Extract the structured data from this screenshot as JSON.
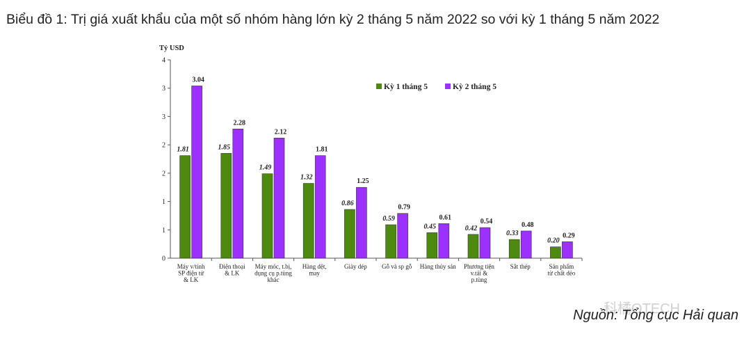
{
  "title": "Biểu đồ 1: Trị giá xuất khẩu của một số nhóm hàng lớn kỳ 2 tháng 5 năm 2022 so với kỳ 1 tháng 5 năm 2022",
  "source": "Nguồn: Tổng cục Hải quan",
  "watermark": "科橘OTECH",
  "chart_data": {
    "type": "bar",
    "title": "",
    "ylabel": "Tỷ USD",
    "ylim": [
      0,
      3.5
    ],
    "yticks": [
      0,
      0.5,
      1,
      1.5,
      2,
      2.5,
      3,
      3.5
    ],
    "ytick_labels": [
      "0",
      "1",
      "1",
      "2",
      "2",
      "3",
      "3",
      "4"
    ],
    "grid": false,
    "legend_position": "top-right",
    "categories": [
      "Máy v/tính SP điện tử & LK",
      "Điện thoại & LK",
      "Máy móc, t.bị, dụng cụ p.tùng khác",
      "Hàng dệt, may",
      "Giày dép",
      "Gỗ và sp gỗ",
      "Hàng thủy sản",
      "Phương tiện v.tải & p.tùng",
      "Sắt thép",
      "Sản phẩm từ chất dẻo"
    ],
    "category_lines": [
      [
        "Máy v/tính",
        "SP điện tử",
        "& LK"
      ],
      [
        "Điện thoại",
        "& LK"
      ],
      [
        "Máy móc, t.bị,",
        "dụng cụ p.tùng",
        "khác"
      ],
      [
        "Hàng dệt,",
        "may"
      ],
      [
        "Giày dép"
      ],
      [
        "Gỗ và sp gỗ"
      ],
      [
        "Hàng thủy sản"
      ],
      [
        "Phương tiện",
        "v.tải &",
        "p.tùng"
      ],
      [
        "Sắt thép"
      ],
      [
        "Sản phẩm",
        "từ chất dẻo"
      ]
    ],
    "series": [
      {
        "name": "Kỳ 1 tháng 5",
        "color": "#4f8a10",
        "values": [
          1.81,
          1.85,
          1.49,
          1.32,
          0.86,
          0.59,
          0.45,
          0.42,
          0.33,
          0.2
        ],
        "labels": [
          "1.81",
          "1.85",
          "1.49",
          "1.32",
          "0.86",
          "0.59",
          "0.45",
          "0.42",
          "0.33",
          "0.20"
        ]
      },
      {
        "name": "Kỳ 2 tháng 5",
        "color": "#9b30ff",
        "values": [
          3.04,
          2.28,
          2.12,
          1.81,
          1.25,
          0.79,
          0.61,
          0.54,
          0.48,
          0.29
        ],
        "labels": [
          "3.04",
          "2.28",
          "2.12",
          "1.81",
          "1.25",
          "0.79",
          "0.61",
          "0.54",
          "0.48",
          "0.29"
        ]
      }
    ]
  }
}
